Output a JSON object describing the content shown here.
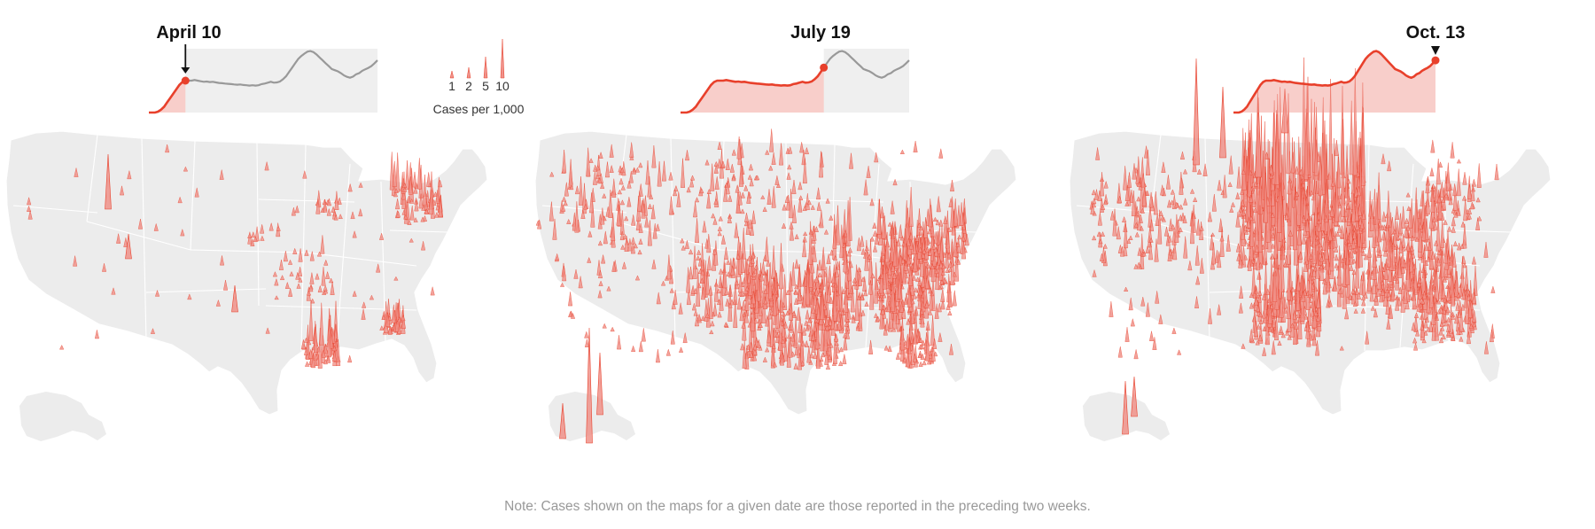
{
  "legend": {
    "title": "Cases per 1,000",
    "values": [
      1,
      2,
      5,
      10
    ],
    "labels": [
      "1",
      "2",
      "5",
      "10"
    ]
  },
  "colors": {
    "accent": "#e8402b",
    "spike_fill": "#f0928a",
    "map_land": "#ececec",
    "state_border": "#ffffff",
    "neutral_line": "#999999",
    "neutral_area": "#efefef"
  },
  "note": "Note: Cases shown on the maps for a given date are those reported in the preceding two weeks.",
  "chart_data": [
    {
      "type": "line",
      "title": "April 10",
      "highlight_index": 12,
      "marker": "arrow",
      "y": [
        0,
        0,
        0,
        0.3,
        1,
        2,
        3.5,
        5,
        6.5,
        8,
        9.5,
        10.5,
        11,
        11,
        11,
        11.2,
        11,
        10.8,
        10.6,
        10.7,
        10.5,
        10.6,
        10.4,
        10.2,
        10.1,
        10,
        9.9,
        9.8,
        9.7,
        9.6,
        9.7,
        9.5,
        9.4,
        9.3,
        9.4,
        9.3,
        9.4,
        9.8,
        10,
        10.3,
        10.6,
        10.3,
        10.4,
        10.7,
        11.5,
        12.5,
        14,
        15.5,
        17,
        18.5,
        19.5,
        20.3,
        21,
        21.2,
        20.8,
        20,
        19,
        18,
        17,
        16,
        15,
        14.6,
        14.2,
        13.6,
        12.8,
        12.3,
        12,
        12.4,
        13.2,
        13.6,
        14.4,
        14.9,
        15.4,
        16,
        17,
        18
      ]
    },
    {
      "type": "line",
      "title": "July 19",
      "highlight_index": 47,
      "marker": "none",
      "y": [
        0,
        0,
        0,
        0.3,
        1,
        2,
        3.5,
        5,
        6.5,
        8,
        9.5,
        10.5,
        11,
        11,
        11,
        11.2,
        11,
        10.8,
        10.6,
        10.7,
        10.5,
        10.6,
        10.4,
        10.2,
        10.1,
        10,
        9.9,
        9.8,
        9.7,
        9.6,
        9.7,
        9.5,
        9.4,
        9.3,
        9.4,
        9.3,
        9.4,
        9.8,
        10,
        10.3,
        10.6,
        10.3,
        10.4,
        10.7,
        11.5,
        12.5,
        14,
        15.5,
        17,
        18.5,
        19.5,
        20.3,
        21,
        21.2,
        20.8,
        20,
        19,
        18,
        17,
        16,
        15,
        14.6,
        14.2,
        13.6,
        12.8,
        12.3,
        12,
        12.4,
        13.2,
        13.6,
        14.4,
        14.9,
        15.4,
        16,
        17,
        18
      ]
    },
    {
      "type": "line",
      "title": "Oct. 13",
      "highlight_index": 75,
      "marker": "triangle",
      "y": [
        0,
        0,
        0,
        0.3,
        1,
        2,
        3.5,
        5,
        6.5,
        8,
        9.5,
        10.5,
        11,
        11,
        11,
        11.2,
        11,
        10.8,
        10.6,
        10.7,
        10.5,
        10.6,
        10.4,
        10.2,
        10.1,
        10,
        9.9,
        9.8,
        9.7,
        9.6,
        9.7,
        9.5,
        9.4,
        9.3,
        9.4,
        9.3,
        9.4,
        9.8,
        10,
        10.3,
        10.6,
        10.3,
        10.4,
        10.7,
        11.5,
        12.5,
        14,
        15.5,
        17,
        18.5,
        19.5,
        20.3,
        21,
        21.2,
        20.8,
        20,
        19,
        18,
        17,
        16,
        15,
        14.6,
        14.2,
        13.6,
        12.8,
        12.3,
        12,
        12.4,
        13.2,
        13.6,
        14.4,
        14.9,
        15.4,
        16,
        17,
        18
      ]
    }
  ]
}
